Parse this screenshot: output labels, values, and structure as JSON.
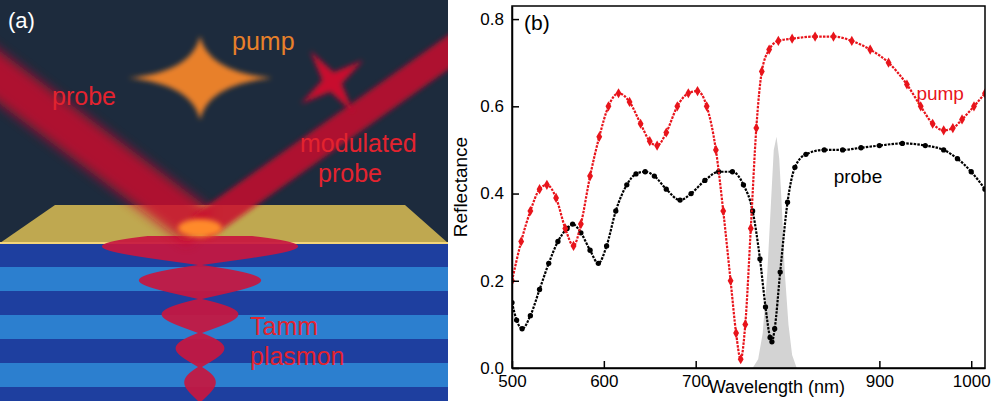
{
  "panel_a": {
    "label": "(a)",
    "probe": "probe",
    "pump": "pump",
    "modulated_probe": "modulated probe",
    "tamm_plasmon": "Tamm plasmon"
  },
  "chart_data": {
    "type": "line",
    "panel_label": "(b)",
    "x_label": "Wavelength (nm)",
    "y_label": "Reflectance",
    "xlim": [
      500,
      1015
    ],
    "xticks": [
      500,
      600,
      700,
      900,
      1000
    ],
    "ylim": [
      0,
      0.83
    ],
    "yticks": [
      {
        "value": 0,
        "label": "0.0"
      },
      {
        "value": 0.2,
        "label": "0.2"
      },
      {
        "value": 0.4,
        "label": "0.4"
      },
      {
        "value": 0.6,
        "label": "0.6"
      },
      {
        "value": 0.8,
        "label": "0.8"
      }
    ],
    "series": [
      {
        "type": "area",
        "color": "#d3d3d3",
        "x": [
          762,
          768,
          773,
          778,
          782,
          785,
          788,
          791,
          794,
          797,
          801,
          805,
          810
        ],
        "values": [
          0,
          0.02,
          0.08,
          0.22,
          0.38,
          0.5,
          0.53,
          0.48,
          0.36,
          0.22,
          0.1,
          0.03,
          0
        ]
      },
      {
        "name": "probe",
        "color": "#000000",
        "marker": "circle",
        "x": [
          500,
          505,
          511,
          520,
          530,
          540,
          550,
          560,
          566,
          575,
          585,
          594,
          603,
          613,
          625,
          635,
          645,
          655,
          668,
          683,
          695,
          710,
          725,
          740,
          752,
          762,
          770,
          776,
          781,
          783,
          786,
          792,
          800,
          808,
          820,
          840,
          860,
          880,
          900,
          925,
          950,
          970,
          985,
          1000,
          1015
        ],
        "values": [
          0.15,
          0.11,
          0.09,
          0.12,
          0.18,
          0.24,
          0.29,
          0.32,
          0.33,
          0.31,
          0.27,
          0.24,
          0.28,
          0.36,
          0.42,
          0.445,
          0.45,
          0.44,
          0.41,
          0.385,
          0.4,
          0.43,
          0.45,
          0.45,
          0.42,
          0.36,
          0.25,
          0.14,
          0.07,
          0.06,
          0.09,
          0.22,
          0.38,
          0.46,
          0.49,
          0.5,
          0.5,
          0.505,
          0.51,
          0.515,
          0.51,
          0.5,
          0.48,
          0.45,
          0.41
        ]
      },
      {
        "name": "pump",
        "color": "#e8141b",
        "marker": "diamond",
        "x": [
          500,
          510,
          520,
          530,
          538,
          548,
          558,
          567,
          575,
          585,
          595,
          605,
          616,
          628,
          640,
          650,
          658,
          668,
          680,
          692,
          702,
          712,
          722,
          730,
          738,
          744,
          749,
          754,
          760,
          766,
          772,
          780,
          790,
          805,
          830,
          850,
          870,
          890,
          910,
          930,
          945,
          958,
          970,
          980,
          990,
          1003,
          1015
        ],
        "values": [
          0.2,
          0.29,
          0.36,
          0.41,
          0.42,
          0.39,
          0.32,
          0.28,
          0.33,
          0.44,
          0.53,
          0.6,
          0.63,
          0.61,
          0.56,
          0.52,
          0.51,
          0.54,
          0.6,
          0.63,
          0.635,
          0.6,
          0.5,
          0.36,
          0.2,
          0.08,
          0.02,
          0.1,
          0.32,
          0.55,
          0.68,
          0.73,
          0.75,
          0.755,
          0.76,
          0.76,
          0.75,
          0.73,
          0.7,
          0.65,
          0.6,
          0.56,
          0.545,
          0.55,
          0.57,
          0.6,
          0.63
        ]
      }
    ]
  }
}
